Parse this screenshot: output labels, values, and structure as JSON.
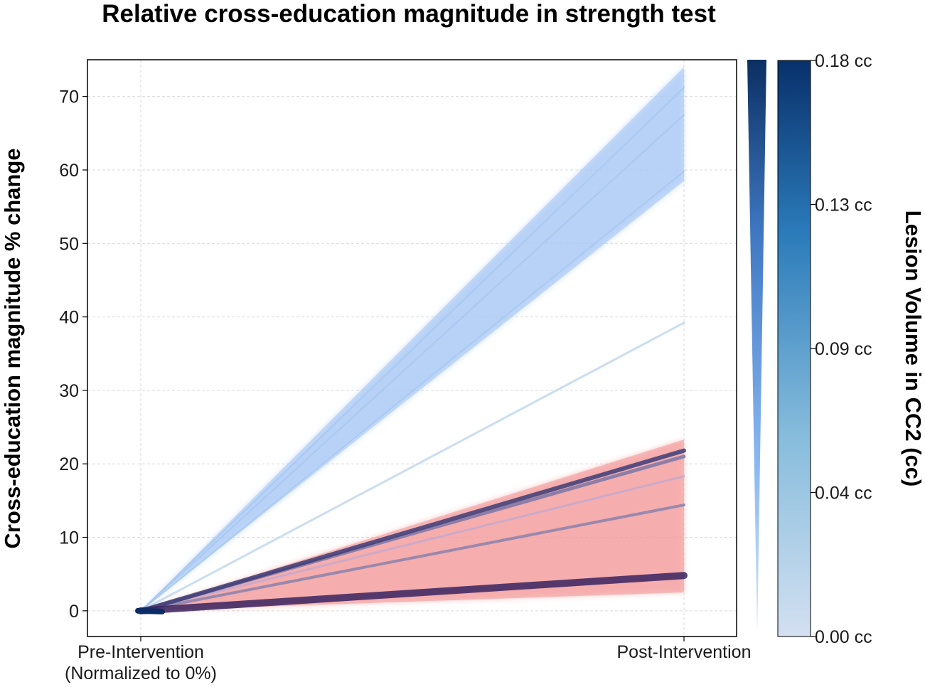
{
  "chart_data": {
    "type": "line",
    "title": "Relative cross-education magnitude in strength test",
    "xlabel": "",
    "ylabel": "Cross-education magnitude % change",
    "x_categories": [
      "Pre-Intervention\n(Normalized to 0%)",
      "Post-Intervention"
    ],
    "x_tick_lines": [
      [
        "Pre-Intervention",
        "(Normalized to 0%)"
      ],
      [
        "Post-Intervention"
      ]
    ],
    "ylim": [
      -3.5,
      75
    ],
    "yticks": [
      0,
      10,
      20,
      30,
      40,
      50,
      60,
      70
    ],
    "grid": true,
    "bands": [
      {
        "color": "#a9c8f5",
        "pre": [
          0,
          0
        ],
        "post": [
          58.5,
          74.0
        ]
      },
      {
        "color": "#f49b9b",
        "pre": [
          0,
          0
        ],
        "post": [
          2.5,
          23.3
        ]
      }
    ],
    "series": [
      {
        "lesion_volume": 0.0,
        "values": [
          0,
          71.2
        ],
        "color": "#a8c8f0",
        "width": 2
      },
      {
        "lesion_volume": 0.0,
        "values": [
          0,
          67.5
        ],
        "color": "#a8c8f0",
        "width": 2
      },
      {
        "lesion_volume": 0.0,
        "values": [
          0,
          59.8
        ],
        "color": "#a8c8f0",
        "width": 2
      },
      {
        "lesion_volume": 0.01,
        "values": [
          0,
          39.2
        ],
        "color": "#c2d8ee",
        "width": 3
      },
      {
        "lesion_volume": 0.03,
        "values": [
          0,
          18.3
        ],
        "color": "#c5a9cf",
        "width": 3
      },
      {
        "lesion_volume": 0.06,
        "values": [
          0,
          14.4
        ],
        "color": "#8a82ad",
        "width": 4
      },
      {
        "lesion_volume": 0.1,
        "values": [
          0,
          21.0
        ],
        "color": "#7c76a8",
        "width": 5
      },
      {
        "lesion_volume": 0.16,
        "values": [
          0,
          21.8
        ],
        "color": "#3d3d78",
        "width": 6
      },
      {
        "lesion_volume": 0.18,
        "values": [
          0,
          4.8
        ],
        "color": "#3a2460",
        "width": 10
      }
    ],
    "colorbar": {
      "label": "Lesion Volume in CC2 (cc)",
      "ticks": [
        "0.18 cc",
        "0.13 cc",
        "0.09 cc",
        "0.04 cc",
        "0.00 cc"
      ],
      "min_color": "#d3e0f1",
      "max_color": "#08306b"
    }
  }
}
